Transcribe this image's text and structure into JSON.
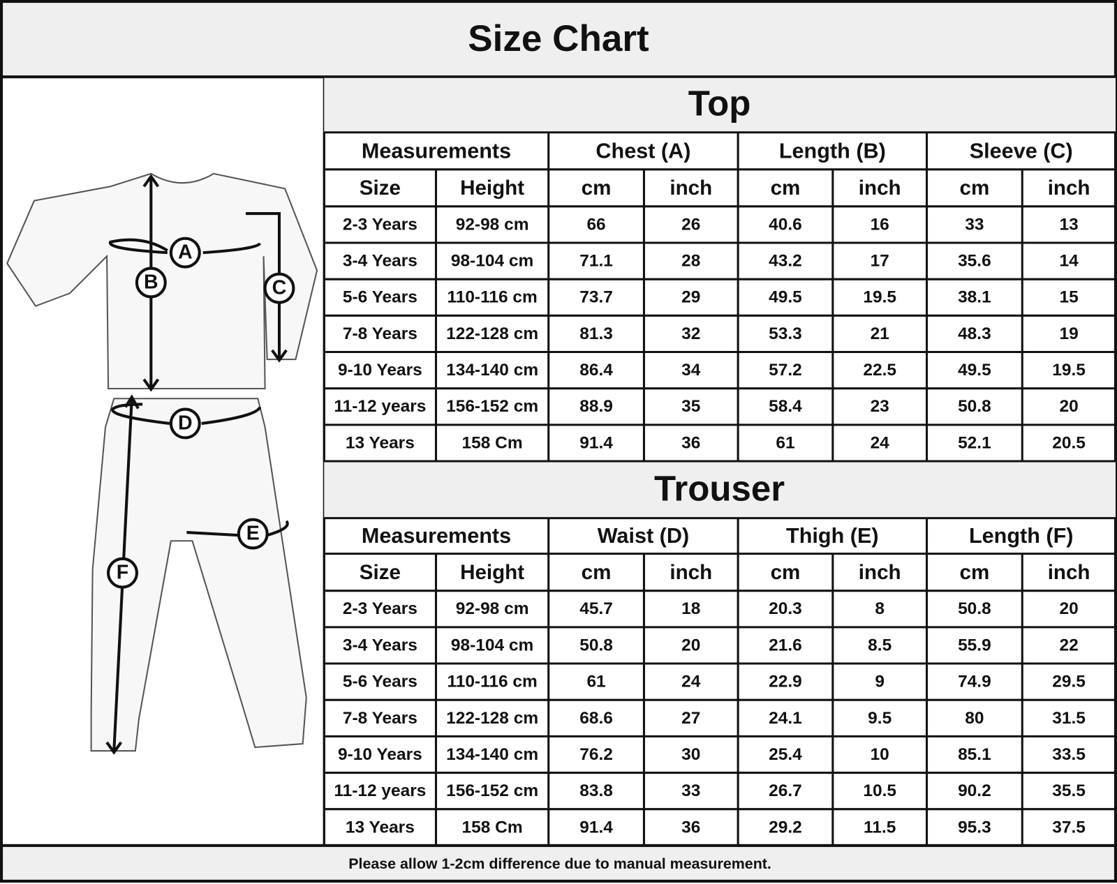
{
  "title": "Size Chart",
  "diagram": {
    "labels": [
      "A",
      "B",
      "C",
      "D",
      "E",
      "F"
    ]
  },
  "top": {
    "title": "Top",
    "group_headers": [
      "Measurements",
      "Chest (A)",
      "Length (B)",
      "Sleeve (C)"
    ],
    "column_headers": [
      "Size",
      "Height",
      "cm",
      "inch",
      "cm",
      "inch",
      "cm",
      "inch"
    ],
    "rows": [
      [
        "2-3 Years",
        "92-98 cm",
        66,
        26,
        40.6,
        16,
        33,
        13
      ],
      [
        "3-4 Years",
        "98-104 cm",
        71.1,
        28,
        43.2,
        17,
        35.6,
        14
      ],
      [
        "5-6 Years",
        "110-116 cm",
        73.7,
        29,
        49.5,
        19.5,
        38.1,
        15
      ],
      [
        "7-8 Years",
        "122-128 cm",
        81.3,
        32,
        53.3,
        21,
        48.3,
        19
      ],
      [
        "9-10 Years",
        "134-140 cm",
        86.4,
        34,
        57.2,
        22.5,
        49.5,
        19.5
      ],
      [
        "11-12 years",
        "156-152 cm",
        88.9,
        35,
        58.4,
        23,
        50.8,
        20
      ],
      [
        "13 Years",
        "158 Cm",
        91.4,
        36,
        61,
        24,
        52.1,
        20.5
      ]
    ]
  },
  "trouser": {
    "title": "Trouser",
    "group_headers": [
      "Measurements",
      "Waist (D)",
      "Thigh (E)",
      "Length (F)"
    ],
    "column_headers": [
      "Size",
      "Height",
      "cm",
      "inch",
      "cm",
      "inch",
      "cm",
      "inch"
    ],
    "rows": [
      [
        "2-3 Years",
        "92-98 cm",
        45.7,
        18,
        20.3,
        8,
        50.8,
        20
      ],
      [
        "3-4 Years",
        "98-104 cm",
        50.8,
        20,
        21.6,
        8.5,
        55.9,
        22
      ],
      [
        "5-6 Years",
        "110-116 cm",
        61,
        24,
        22.9,
        9,
        74.9,
        29.5
      ],
      [
        "7-8 Years",
        "122-128 cm",
        68.6,
        27,
        24.1,
        9.5,
        80,
        31.5
      ],
      [
        "9-10 Years",
        "134-140 cm",
        76.2,
        30,
        25.4,
        10,
        85.1,
        33.5
      ],
      [
        "11-12 years",
        "156-152 cm",
        83.8,
        33,
        26.7,
        10.5,
        90.2,
        35.5
      ],
      [
        "13 Years",
        "158 Cm",
        91.4,
        36,
        29.2,
        11.5,
        95.3,
        37.5
      ]
    ]
  },
  "footer": "Please allow 1-2cm difference due to manual measurement."
}
